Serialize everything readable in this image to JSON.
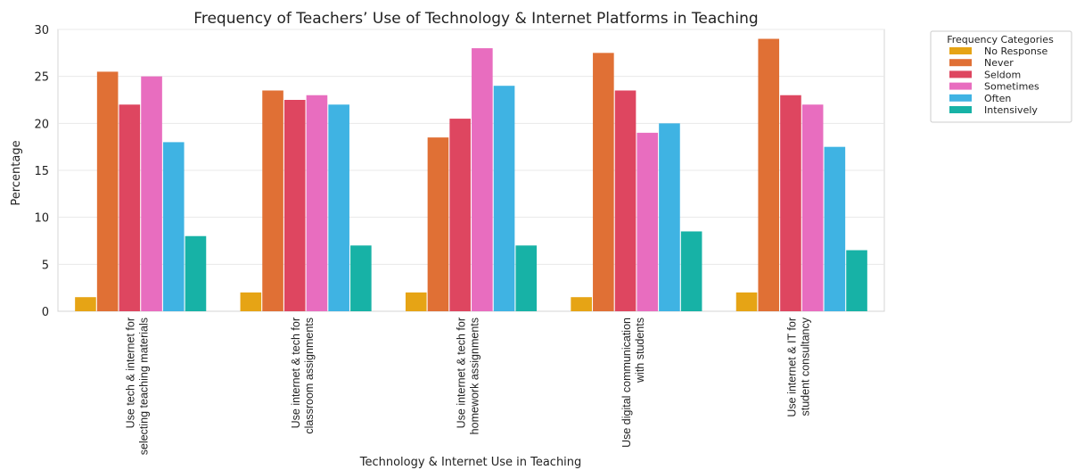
{
  "chart_data": {
    "type": "bar",
    "title": "Frequency of Teachers’ Use of Technology & Internet Platforms in Teaching",
    "xlabel": "Technology & Internet Use in Teaching",
    "ylabel": "Percentage",
    "ylim": [
      0,
      30
    ],
    "yticks": [
      0,
      5,
      10,
      15,
      20,
      25,
      30
    ],
    "grid": true,
    "legend": {
      "title": "Frequency Categories",
      "placement": "outside-top-right"
    },
    "categories": [
      [
        "Use tech & internet for",
        "selecting teaching materials"
      ],
      [
        "Use internet & tech for",
        "classroom assignments"
      ],
      [
        "Use internet & tech for",
        "homework assignments"
      ],
      [
        "Use digital communication",
        "with students"
      ],
      [
        "Use internet & IT for",
        "student consultancy"
      ]
    ],
    "series": [
      {
        "name": "No Response",
        "color": "#e6a415",
        "values": [
          1.5,
          2,
          2,
          1.5,
          2
        ]
      },
      {
        "name": "Never",
        "color": "#e07035",
        "values": [
          25.5,
          23.5,
          18.5,
          27.5,
          29
        ]
      },
      {
        "name": "Seldom",
        "color": "#de4660",
        "values": [
          22,
          22.5,
          20.5,
          23.5,
          23
        ]
      },
      {
        "name": "Sometimes",
        "color": "#e86dbf",
        "values": [
          25,
          23,
          28,
          19,
          22
        ]
      },
      {
        "name": "Often",
        "color": "#3fb3e3",
        "values": [
          18,
          22,
          24,
          20,
          17.5
        ]
      },
      {
        "name": "Intensively",
        "color": "#17b2a6",
        "values": [
          8,
          7,
          7,
          8.5,
          6.5
        ]
      }
    ]
  }
}
